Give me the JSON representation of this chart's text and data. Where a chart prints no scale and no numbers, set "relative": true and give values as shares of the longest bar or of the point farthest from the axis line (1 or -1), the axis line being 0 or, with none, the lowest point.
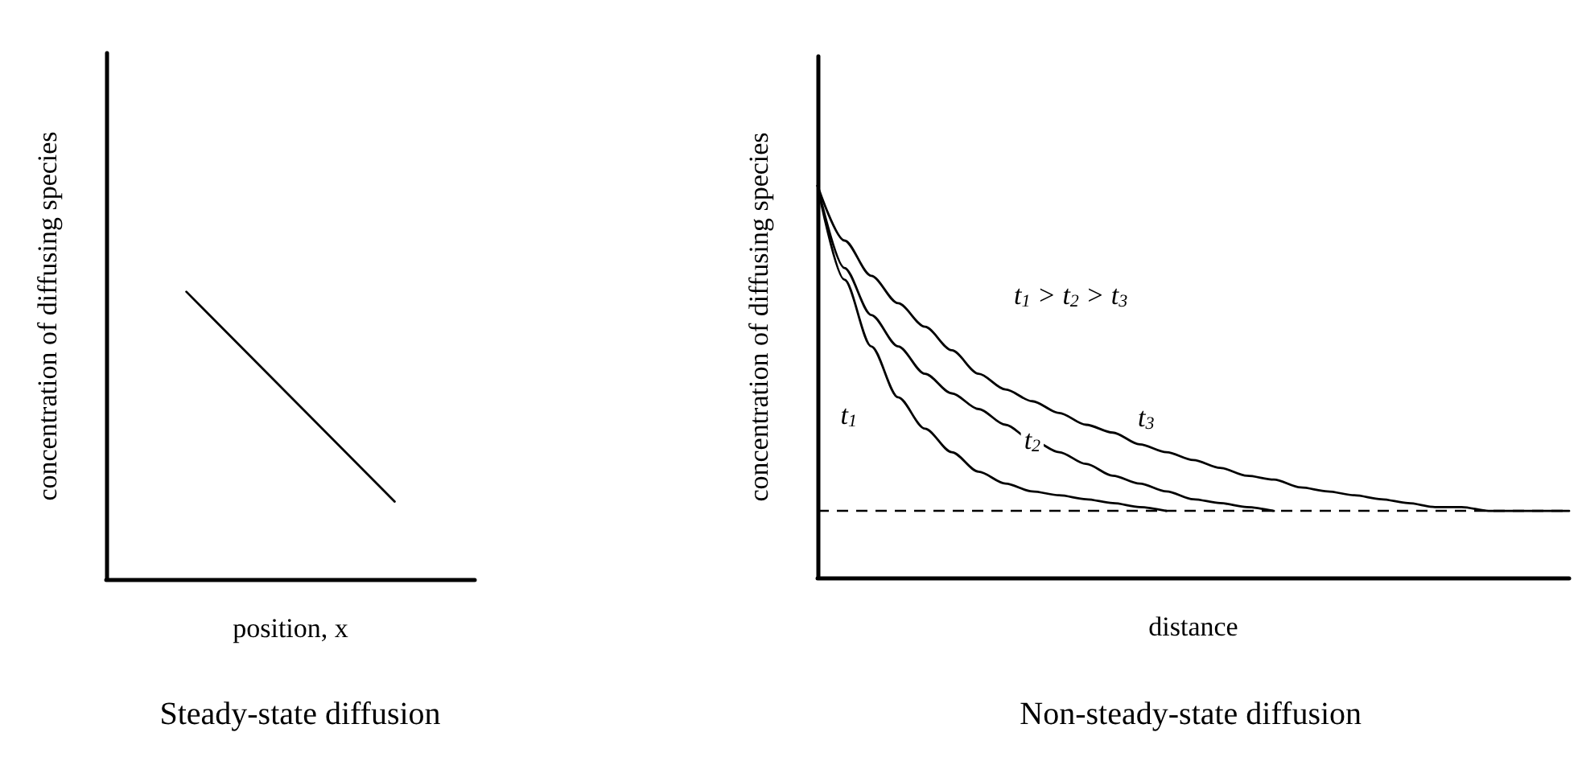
{
  "chart_data": [
    {
      "type": "line",
      "title": "Steady-state diffusion",
      "xlabel": "position, x",
      "ylabel": "concentration of diffusing species",
      "relative": true,
      "marker": "none",
      "line_style": "solid",
      "categories": [
        null,
        null,
        null,
        null,
        null,
        null,
        null,
        null,
        null,
        null,
        null,
        null,
        null,
        null,
        null,
        null,
        null,
        null,
        null,
        null,
        null,
        null,
        null,
        null
      ],
      "series": [
        {
          "color": "#000000",
          "values": [
            null,
            null,
            null,
            null,
            null,
            1,
            null,
            null,
            null,
            null,
            null,
            null,
            null,
            null,
            null,
            null,
            null,
            null,
            0.27,
            null,
            null,
            null,
            null,
            null
          ]
        }
      ]
    },
    {
      "type": "line",
      "title": "Non-steady-state diffusion",
      "xlabel": "distance",
      "ylabel": "concentration of diffusing species",
      "relative": true,
      "marker": "none",
      "line_style": "solid",
      "annotations": [
        "t$_{1}$ > t$_{2}$ > t$_{3}$"
      ],
      "ref_lines": [
        {
          "axis": "y",
          "value": 0.17,
          "color": "#000000",
          "line_style": "dashed"
        }
      ],
      "categories": [
        null,
        null,
        null,
        null,
        null,
        null,
        null,
        null,
        null,
        null,
        null,
        null,
        null,
        null,
        null,
        null,
        null,
        null,
        null,
        null,
        null,
        null,
        null,
        null,
        null,
        null,
        null,
        null,
        null
      ],
      "series": [
        {
          "name": "t$_{1}$",
          "color": "#000000",
          "values": [
            1,
            0.76,
            0.59,
            0.46,
            0.38,
            0.32,
            0.27,
            0.24,
            0.22,
            0.21,
            0.2,
            0.19,
            0.18,
            0.17,
            null,
            null,
            null,
            null,
            null,
            null,
            null,
            null,
            null,
            null,
            null,
            null,
            null,
            null,
            null
          ]
        },
        {
          "name": "t$_{2}$",
          "color": "#000000",
          "values": [
            1,
            0.79,
            0.67,
            0.59,
            0.52,
            0.47,
            0.43,
            0.39,
            0.35,
            0.32,
            0.29,
            0.26,
            0.24,
            0.22,
            0.2,
            0.19,
            0.18,
            0.17,
            null,
            null,
            null,
            null,
            null,
            null,
            null,
            null,
            null,
            null,
            null
          ]
        },
        {
          "name": "t$_{3}$",
          "color": "#000000",
          "values": [
            1,
            0.86,
            0.77,
            0.7,
            0.64,
            0.58,
            0.52,
            0.48,
            0.45,
            0.42,
            0.39,
            0.37,
            0.34,
            0.32,
            0.3,
            0.28,
            0.26,
            0.25,
            0.23,
            0.22,
            0.21,
            0.2,
            0.19,
            0.18,
            0.18,
            0.17,
            0.17,
            0.17,
            0.17
          ]
        }
      ]
    }
  ]
}
